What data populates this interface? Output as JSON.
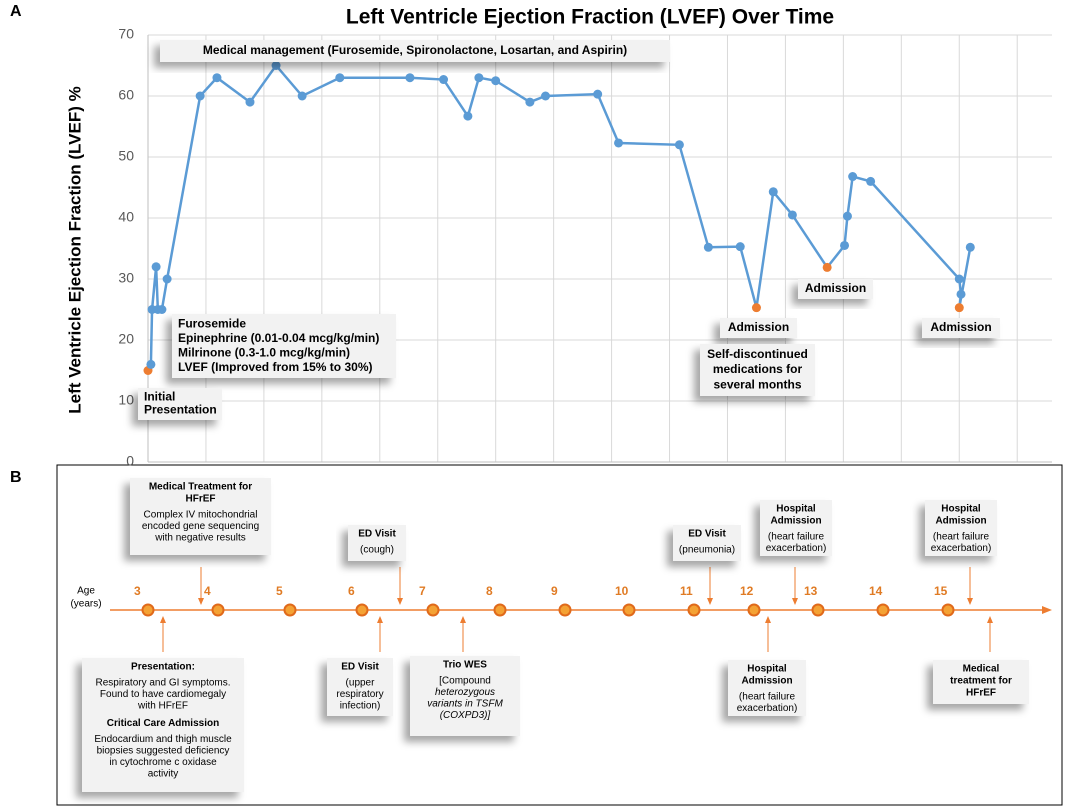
{
  "chart_data": {
    "type": "line",
    "title": "Left Ventricle Ejection Fraction (LVEF) Over Time",
    "panel_label": "A",
    "y_label": "Left Ventricle Ejection Fraction (LVEF) %",
    "x": [
      0,
      0.05,
      0.07,
      0.14,
      0.17,
      0.24,
      0.33,
      0.9,
      1.19,
      1.76,
      2.21,
      2.66,
      3.31,
      4.52,
      5.1,
      5.52,
      5.71,
      6,
      6.59,
      6.86,
      7.76,
      8.12,
      9.17,
      9.67,
      10.22,
      10.5,
      10.79,
      11.12,
      11.72,
      12.02,
      12.07,
      12.16,
      12.47,
      14,
      14.03,
      14,
      14.19
    ],
    "values": [
      15,
      16,
      25,
      32,
      25,
      25,
      30,
      60,
      63,
      59,
      65,
      60,
      63,
      63,
      62.7,
      56.7,
      63,
      62.5,
      59,
      60,
      60.3,
      52.3,
      52,
      35.2,
      35.3,
      25.3,
      44.3,
      40.5,
      31.9,
      35.5,
      40.3,
      46.8,
      46,
      30,
      27.5,
      25.3,
      35.2
    ],
    "color": "#5b9bd5",
    "point_colors": [
      "#ed7d31",
      "#5b9bd5",
      "#5b9bd5",
      "#5b9bd5",
      "#5b9bd5",
      "#5b9bd5",
      "#5b9bd5",
      "#5b9bd5",
      "#5b9bd5",
      "#5b9bd5",
      "#5b9bd5",
      "#5b9bd5",
      "#5b9bd5",
      "#5b9bd5",
      "#5b9bd5",
      "#5b9bd5",
      "#5b9bd5",
      "#5b9bd5",
      "#5b9bd5",
      "#5b9bd5",
      "#5b9bd5",
      "#5b9bd5",
      "#5b9bd5",
      "#5b9bd5",
      "#5b9bd5",
      "#ed7d31",
      "#5b9bd5",
      "#5b9bd5",
      "#ed7d31",
      "#5b9bd5",
      "#5b9bd5",
      "#5b9bd5",
      "#5b9bd5",
      "#5b9bd5",
      "#5b9bd5",
      "#ed7d31",
      "#5b9bd5"
    ],
    "xlim": [
      0,
      15.6
    ],
    "xticks": [
      0,
      1,
      2,
      3,
      4,
      5,
      6,
      7,
      8,
      9,
      10,
      11,
      12,
      13,
      14,
      15
    ],
    "ylim": [
      0,
      70
    ],
    "yticks": [
      0,
      10,
      20,
      30,
      40,
      50,
      60,
      70
    ],
    "grid": true,
    "annotations": [
      [
        "Medical management (Furosemide, Spironolactone, Losartan, and Aspirin)"
      ],
      [
        "Furosemide",
        "Epinephrine (0.01-0.04 mcg/kg/min)",
        "Milrinone (0.3-1.0 mcg/kg/min)",
        "LVEF (Improved from 15% to 30%)"
      ],
      [
        "Initial",
        "Presentation"
      ],
      [
        "Admission"
      ],
      [
        "Self-discontinued",
        "medications for",
        "several months"
      ],
      [
        "Admission"
      ],
      [
        "Admission"
      ]
    ]
  },
  "timeline": {
    "panel_label": "B",
    "axis_label": [
      "Age",
      "(years)"
    ],
    "ages": [
      "3",
      "4",
      "5",
      "6",
      "7",
      "8",
      "9",
      "10",
      "11",
      "12",
      "13",
      "14",
      "15"
    ],
    "events": [
      {
        "sections": [
          {
            "title": [
              "Medical Treatment for",
              "HFrEF"
            ],
            "body": [
              "Complex IV mitochondrial",
              "encoded gene sequencing",
              "with negative results"
            ]
          }
        ]
      },
      {
        "sections": [
          {
            "title": [
              "ED Visit"
            ],
            "body": [
              "(cough)"
            ]
          }
        ]
      },
      {
        "sections": [
          {
            "title": [
              "ED Visit"
            ],
            "body": [
              "(pneumonia)"
            ]
          }
        ]
      },
      {
        "sections": [
          {
            "title": [
              "Hospital",
              "Admission"
            ],
            "body": [
              "(heart failure",
              "exacerbation)"
            ]
          }
        ]
      },
      {
        "sections": [
          {
            "title": [
              "Hospital",
              "Admission"
            ],
            "body": [
              "(heart failure",
              "exacerbation)"
            ]
          }
        ]
      },
      {
        "sections": [
          {
            "title": [
              "Presentation:"
            ],
            "body": [
              "Respiratory and GI symptoms.",
              "Found to have cardiomegaly",
              "with HFrEF"
            ]
          },
          {
            "title": [
              "Critical Care Admission"
            ],
            "body": [
              "Endocardium and thigh muscle",
              "biopsies suggested deficiency",
              "in cytochrome c oxidase",
              "activity"
            ]
          }
        ]
      },
      {
        "sections": [
          {
            "title": [
              "ED Visit"
            ],
            "body": [
              "(upper",
              "respiratory",
              "infection)"
            ]
          }
        ]
      },
      {
        "sections": [
          {
            "title": [
              "Trio WES"
            ],
            "body": [
              "[Compound",
              "heterozygous",
              "variants in TSFM",
              "(COXPD3)]"
            ]
          }
        ]
      },
      {
        "sections": [
          {
            "title": [
              "Hospital",
              "Admission"
            ],
            "body": [
              "(heart failure",
              "exacerbation)"
            ]
          }
        ]
      },
      {
        "sections": [
          {
            "title": [
              "Medical",
              "treatment for",
              "HFrEF"
            ]
          }
        ]
      }
    ]
  }
}
